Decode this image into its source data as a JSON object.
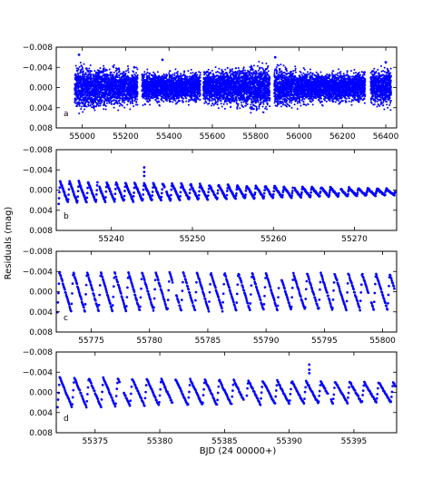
{
  "figure": {
    "ylabel": "Residuals (mag)",
    "xlabel": "BJD (24 00000+)"
  },
  "chart_data": [
    {
      "type": "scatter",
      "panel_label": "a",
      "xlim": [
        54880,
        56450
      ],
      "ylim": [
        0.008,
        -0.008
      ],
      "y_inverted": true,
      "xticks": [
        55000,
        55200,
        55400,
        55600,
        55800,
        56000,
        56200,
        56400
      ],
      "yticks": [
        -0.008,
        -0.004,
        0.0,
        0.004,
        0.008
      ],
      "ytick_labels": [
        "−0.008",
        "−0.004",
        "0.000",
        "0.004",
        "0.008"
      ],
      "marker_color": "#0000ff",
      "segments": [
        [
          54965,
          55255
        ],
        [
          55275,
          55545
        ],
        [
          55558,
          55865
        ],
        [
          55885,
          56305
        ],
        [
          56330,
          56425
        ]
      ],
      "envelope_mag": [
        [
          54965,
          0.0045
        ],
        [
          55100,
          0.0042
        ],
        [
          55250,
          0.0035
        ],
        [
          55400,
          0.003
        ],
        [
          55560,
          0.0032
        ],
        [
          55700,
          0.004
        ],
        [
          55800,
          0.0046
        ],
        [
          55900,
          0.0044
        ],
        [
          56000,
          0.0035
        ],
        [
          56150,
          0.003
        ],
        [
          56300,
          0.0032
        ],
        [
          56425,
          0.004
        ]
      ],
      "outliers": [
        [
          54985,
          -0.0065
        ],
        [
          55240,
          -0.004
        ],
        [
          55370,
          -0.0055
        ],
        [
          55890,
          -0.006
        ],
        [
          56400,
          -0.005
        ]
      ]
    },
    {
      "type": "scatter",
      "panel_label": "b",
      "xlim": [
        55233.2,
        55275.2
      ],
      "ylim": [
        0.008,
        -0.008
      ],
      "y_inverted": true,
      "xticks": [
        55240,
        55250,
        55260,
        55270
      ],
      "yticks": [
        -0.008,
        -0.004,
        0.0,
        0.004,
        0.008
      ],
      "ytick_labels": [
        "−0.008",
        "−0.004",
        "0.000",
        "0.004",
        "0.008"
      ],
      "marker_color": "#0000ff",
      "pulsation": {
        "start": 55233.5,
        "end": 55275.0,
        "period": 1.15,
        "amp_start": 0.0022,
        "amp_end": 0.0006,
        "offset": 0.0004
      },
      "gaps": [
        [
          55238.3,
          55238.5
        ],
        [
          55246.6,
          55246.8
        ],
        [
          55262.4,
          55262.6
        ],
        [
          55268.1,
          55268.3
        ]
      ],
      "outliers": [
        [
          55244.05,
          -0.0045
        ],
        [
          55244.05,
          -0.0036
        ],
        [
          55244.05,
          -0.0028
        ]
      ]
    },
    {
      "type": "scatter",
      "panel_label": "c",
      "xlim": [
        55772.0,
        55801.2
      ],
      "ylim": [
        0.008,
        -0.008
      ],
      "y_inverted": true,
      "xticks": [
        55775,
        55780,
        55785,
        55790,
        55795,
        55800
      ],
      "yticks": [
        -0.008,
        -0.004,
        0.0,
        0.004,
        0.008
      ],
      "ytick_labels": [
        "−0.008",
        "−0.004",
        "0.000",
        "0.004",
        "0.008"
      ],
      "marker_color": "#0000ff",
      "pulsation": {
        "start": 55772.1,
        "end": 55801.0,
        "period": 1.18,
        "amp_start": 0.004,
        "amp_end": 0.0036,
        "offset": 0.0
      },
      "gaps": [
        [
          55782.0,
          55782.3
        ],
        [
          55791.1,
          55791.3
        ],
        [
          55798.8,
          55799.0
        ]
      ],
      "outliers": []
    },
    {
      "type": "scatter",
      "panel_label": "d",
      "xlim": [
        55372.0,
        55398.3
      ],
      "ylim": [
        0.008,
        -0.008
      ],
      "y_inverted": true,
      "xticks": [
        55375,
        55380,
        55385,
        55390,
        55395
      ],
      "yticks": [
        -0.008,
        -0.004,
        0.0,
        0.004,
        0.008
      ],
      "ytick_labels": [
        "−0.008",
        "−0.004",
        "0.000",
        "0.004",
        "0.008"
      ],
      "marker_color": "#0000ff",
      "pulsation": {
        "start": 55372.1,
        "end": 55398.2,
        "period": 1.12,
        "amp_start": 0.003,
        "amp_end": 0.002,
        "offset": 0.0
      },
      "gaps": [
        [
          55376.9,
          55377.2
        ],
        [
          55381.0,
          55381.2
        ],
        [
          55386.5,
          55386.7
        ],
        [
          55393.0,
          55393.2
        ]
      ],
      "outliers": [
        [
          55391.55,
          -0.0055
        ],
        [
          55391.55,
          -0.0045
        ],
        [
          55391.55,
          -0.0038
        ]
      ]
    }
  ]
}
